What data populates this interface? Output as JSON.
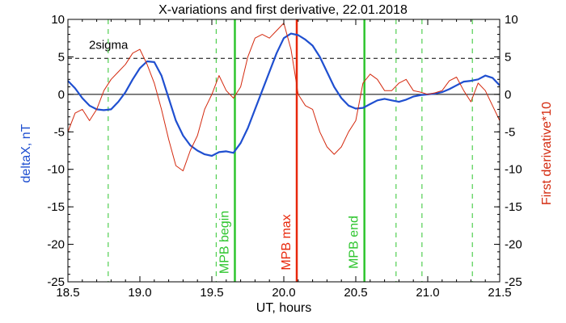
{
  "chart_data": {
    "type": "line",
    "title": "X-variations and first derivative, 22.01.2018",
    "xlabel": "UT, hours",
    "ylabel_left": "deltaX, nT",
    "ylabel_right": "First derivative*10",
    "xlim": [
      18.5,
      21.5
    ],
    "ylim": [
      -25,
      10
    ],
    "xticks": [
      "18.5",
      "19.0",
      "19.5",
      "20.0",
      "20.5",
      "21.0",
      "21.5"
    ],
    "xtick_values": [
      18.5,
      19.0,
      19.5,
      20.0,
      20.5,
      21.0,
      21.5
    ],
    "yticks_left": [
      "10",
      "5",
      "0",
      "-5",
      "-10",
      "-15",
      "-20",
      "-25"
    ],
    "yticks_right": [
      "10",
      "5",
      "0",
      "-5",
      "-10",
      "-15",
      "-20",
      "-25"
    ],
    "ytick_values": [
      10,
      5,
      0,
      -5,
      -10,
      -15,
      -20,
      -25
    ],
    "threshold": {
      "label": "2sigma",
      "value": 4.8,
      "color": "#000000"
    },
    "zero_line": 0,
    "series": [
      {
        "color": "#1f4fd0",
        "axis": "left",
        "x": [
          18.5,
          18.55,
          18.6,
          18.65,
          18.7,
          18.75,
          18.8,
          18.85,
          18.9,
          18.95,
          19.0,
          19.05,
          19.1,
          19.15,
          19.2,
          19.25,
          19.3,
          19.35,
          19.4,
          19.45,
          19.5,
          19.55,
          19.6,
          19.65,
          19.7,
          19.75,
          19.8,
          19.85,
          19.9,
          19.95,
          20.0,
          20.05,
          20.1,
          20.15,
          20.2,
          20.25,
          20.3,
          20.35,
          20.4,
          20.45,
          20.5,
          20.55,
          20.6,
          20.65,
          20.7,
          20.75,
          20.8,
          20.85,
          20.9,
          20.95,
          21.0,
          21.05,
          21.1,
          21.15,
          21.2,
          21.25,
          21.3,
          21.35,
          21.4,
          21.45,
          21.5
        ],
        "y": [
          1.8,
          0.8,
          -0.5,
          -1.5,
          -2.0,
          -2.1,
          -2.0,
          -1.0,
          0.3,
          2.0,
          3.5,
          4.4,
          4.3,
          2.5,
          -0.5,
          -3.5,
          -5.5,
          -6.8,
          -7.5,
          -8.0,
          -8.2,
          -7.7,
          -7.6,
          -7.8,
          -6.5,
          -4.5,
          -2.0,
          0.5,
          3.0,
          5.5,
          7.5,
          8.1,
          7.9,
          7.3,
          6.5,
          5.0,
          3.0,
          1.0,
          -0.5,
          -1.5,
          -1.9,
          -1.8,
          -1.3,
          -0.8,
          -0.6,
          -0.8,
          -1.0,
          -0.7,
          -0.3,
          -0.1,
          0.0,
          0.1,
          0.3,
          0.7,
          1.2,
          1.7,
          1.8,
          2.0,
          2.5,
          2.2,
          1.2
        ]
      },
      {
        "color": "#d42a0f",
        "axis": "right",
        "x": [
          18.5,
          18.55,
          18.6,
          18.65,
          18.7,
          18.75,
          18.8,
          18.85,
          18.9,
          18.95,
          19.0,
          19.05,
          19.1,
          19.15,
          19.2,
          19.25,
          19.3,
          19.35,
          19.4,
          19.45,
          19.5,
          19.55,
          19.6,
          19.65,
          19.7,
          19.75,
          19.8,
          19.85,
          19.9,
          19.95,
          20.0,
          20.05,
          20.1,
          20.15,
          20.2,
          20.25,
          20.3,
          20.35,
          20.4,
          20.45,
          20.5,
          20.55,
          20.6,
          20.65,
          20.7,
          20.75,
          20.8,
          20.85,
          20.9,
          20.95,
          21.0,
          21.05,
          21.1,
          21.15,
          21.2,
          21.25,
          21.3,
          21.35,
          21.4,
          21.45,
          21.5
        ],
        "y": [
          -5.0,
          -2.5,
          -2.0,
          -3.5,
          -2.0,
          0.5,
          2.0,
          3.0,
          4.0,
          5.5,
          6.0,
          4.0,
          1.5,
          -2.0,
          -6.0,
          -9.5,
          -10.2,
          -7.5,
          -5.5,
          -2.0,
          0.0,
          2.5,
          0.5,
          -0.5,
          1.0,
          5.0,
          7.5,
          8.0,
          7.5,
          8.5,
          9.5,
          6.0,
          0.0,
          -1.5,
          -2.0,
          -5.0,
          -7.0,
          -8.0,
          -7.0,
          -5.0,
          -3.5,
          1.5,
          2.7,
          2.0,
          0.5,
          0.5,
          1.5,
          2.0,
          0.5,
          0.3,
          0.0,
          0.2,
          0.5,
          1.8,
          2.3,
          0.5,
          -1.0,
          1.5,
          0.5,
          -1.5,
          -3.5
        ]
      }
    ],
    "vertical_markers": [
      {
        "x": 18.78,
        "style": "dashed",
        "color": "#2ec52e",
        "label": ""
      },
      {
        "x": 19.53,
        "style": "dashed",
        "color": "#2ec52e",
        "label": ""
      },
      {
        "x": 19.66,
        "style": "solid",
        "color": "#2ec52e",
        "label": "MPB begin"
      },
      {
        "x": 20.09,
        "style": "solid",
        "color": "#e8280c",
        "label": "MPB max"
      },
      {
        "x": 20.56,
        "style": "solid",
        "color": "#2ec52e",
        "label": "MPB end"
      },
      {
        "x": 20.78,
        "style": "dashed",
        "color": "#2ec52e",
        "label": ""
      },
      {
        "x": 20.96,
        "style": "dashed",
        "color": "#2ec52e",
        "label": ""
      },
      {
        "x": 21.31,
        "style": "dashed",
        "color": "#2ec52e",
        "label": ""
      }
    ],
    "grid": false
  }
}
